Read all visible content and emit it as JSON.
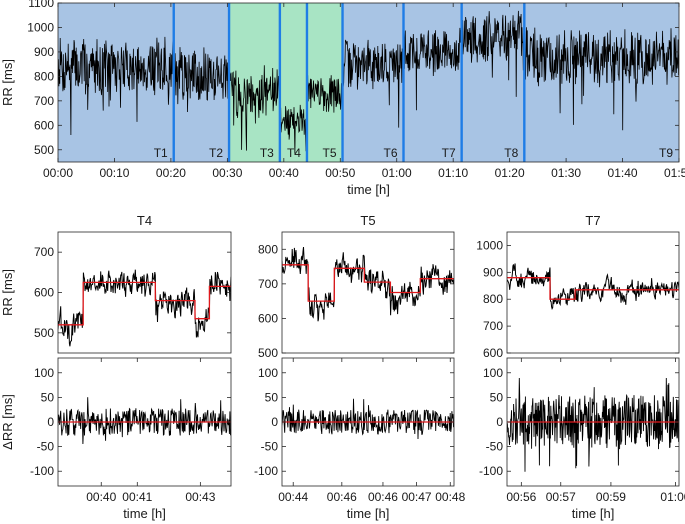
{
  "colors": {
    "segment_blue": "#a8c4e4",
    "segment_green": "#a8e4c4",
    "boundary": "#1f7de6",
    "signal": "#000000",
    "step": "#e0191c"
  },
  "chart_data": [
    {
      "id": "overview",
      "type": "line",
      "title": "",
      "xlabel": "time [h]",
      "ylabel": "RR [ms]",
      "xlim": [
        0,
        110
      ],
      "ylim": [
        450,
        1100
      ],
      "xticks": [
        0,
        10,
        20,
        30,
        40,
        50,
        60,
        70,
        80,
        90,
        100,
        110
      ],
      "xticklabels": [
        "00:00",
        "00:10",
        "00:20",
        "00:30",
        "00:40",
        "00:50",
        "01:00",
        "01:10",
        "01:20",
        "01:30",
        "01:40",
        "01:50"
      ],
      "yticks": [
        500,
        600,
        700,
        800,
        900,
        1000,
        1100
      ],
      "yticklabels": [
        "500",
        "600",
        "700",
        "800",
        "900",
        "1000",
        "1100"
      ],
      "segment_boundaries": [
        0,
        20.5,
        30.3,
        39.3,
        44.1,
        50.4,
        61.2,
        71.5,
        82.6,
        110
      ],
      "segment_labels": [
        "T1",
        "T2",
        "T3",
        "T4",
        "T5",
        "T6",
        "T7",
        "T8",
        "T9"
      ],
      "highlighted_segments": [
        "T3",
        "T4",
        "T5"
      ],
      "segment_levels": [
        840,
        810,
        740,
        620,
        730,
        850,
        900,
        960,
        880
      ],
      "segment_spread": [
        130,
        120,
        120,
        70,
        90,
        110,
        110,
        120,
        130
      ]
    },
    {
      "id": "T4-rr",
      "type": "line",
      "title": "T4",
      "ylabel": "RR [ms]",
      "xlim": [
        38.8,
        43.6
      ],
      "ylim": [
        450,
        750
      ],
      "yticks": [
        500,
        600,
        700
      ],
      "yticklabels": [
        "500",
        "600",
        "700"
      ],
      "step_x": [
        38.8,
        39.5,
        39.5,
        41.5,
        41.5,
        42.6,
        42.6,
        43.0,
        43.0,
        43.6
      ],
      "step_y": [
        520,
        520,
        625,
        625,
        580,
        580,
        535,
        535,
        615,
        615
      ],
      "noise": 45
    },
    {
      "id": "T5-rr",
      "type": "line",
      "title": "T5",
      "ylabel": "",
      "xlim": [
        43.8,
        48.4
      ],
      "ylim": [
        500,
        850
      ],
      "yticks": [
        500,
        600,
        700,
        800
      ],
      "yticklabels": [
        "500",
        "600",
        "700",
        "800"
      ],
      "step_x": [
        43.8,
        44.5,
        44.5,
        45.2,
        45.2,
        46.0,
        46.0,
        46.7,
        46.7,
        47.5,
        47.5,
        48.4
      ],
      "step_y": [
        755,
        755,
        650,
        650,
        745,
        745,
        705,
        705,
        675,
        675,
        715,
        715
      ],
      "noise": 50
    },
    {
      "id": "T7-rr",
      "type": "line",
      "title": "T7",
      "ylabel": "",
      "xlim": [
        55.5,
        60.3
      ],
      "ylim": [
        600,
        1050
      ],
      "yticks": [
        600,
        700,
        800,
        900,
        1000
      ],
      "yticklabels": [
        "600",
        "700",
        "800",
        "900",
        "1000"
      ],
      "step_x": [
        55.5,
        56.7,
        56.7,
        57.4,
        57.4,
        60.3
      ],
      "step_y": [
        880,
        880,
        800,
        800,
        835,
        835
      ],
      "noise": 45
    },
    {
      "id": "T4-drr",
      "type": "line",
      "title": "",
      "xlabel": "time [h]",
      "ylabel": "ΔRR [ms]",
      "xlim": [
        38.8,
        43.6
      ],
      "ylim": [
        -130,
        130
      ],
      "yticks": [
        -100,
        -50,
        0,
        50,
        100
      ],
      "yticklabels": [
        "-100",
        "-50",
        "0",
        "50",
        "100"
      ],
      "xticks": [
        40,
        41,
        42.75
      ],
      "xticklabels": [
        "00:40",
        "00:41",
        "00:43"
      ],
      "amp": 28,
      "zero_line": 0
    },
    {
      "id": "T5-drr",
      "type": "line",
      "title": "",
      "xlabel": "time [h]",
      "ylabel": "",
      "xlim": [
        43.8,
        48.4
      ],
      "ylim": [
        -130,
        130
      ],
      "yticks": [
        -100,
        -50,
        0,
        50,
        100
      ],
      "yticklabels": [
        "-100",
        "-50",
        "0",
        "50",
        "100"
      ],
      "xticks": [
        44.1,
        45.4,
        46.5,
        47.4,
        48.3
      ],
      "xticklabels": [
        "00:44",
        "00:46",
        "00:46",
        "00:47",
        "00:48"
      ],
      "amp": 25,
      "zero_line": 0
    },
    {
      "id": "T7-drr",
      "type": "line",
      "title": "",
      "xlabel": "time [h]",
      "ylabel": "",
      "xlim": [
        55.5,
        60.3
      ],
      "ylim": [
        -130,
        130
      ],
      "yticks": [
        -100,
        -50,
        0,
        50,
        100
      ],
      "yticklabels": [
        "-100",
        "-50",
        "0",
        "50",
        "100"
      ],
      "xticks": [
        55.9,
        57.0,
        58.4,
        60.2
      ],
      "xticklabels": [
        "00:56",
        "00:57",
        "00:59",
        "01:00"
      ],
      "amp": 55,
      "zero_line": 0
    }
  ]
}
